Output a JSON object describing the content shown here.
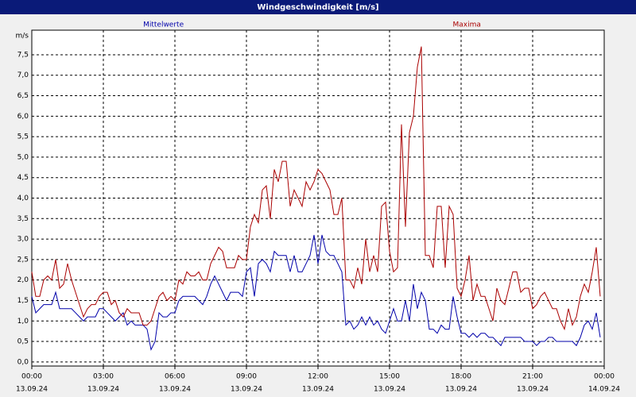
{
  "chart_data": {
    "type": "line",
    "title": "Windgeschwindigkeit [m/s]",
    "y_label": "m/s",
    "x": [
      0,
      10,
      20,
      30,
      40,
      50,
      60,
      70,
      80,
      90,
      100,
      110,
      120,
      130,
      140,
      150,
      160,
      170,
      180,
      190,
      200,
      210,
      220,
      230,
      240,
      250,
      260,
      270,
      280,
      290,
      300,
      310,
      320,
      330,
      340,
      350,
      360,
      370,
      380,
      390,
      400,
      410,
      420,
      430,
      440,
      450,
      460,
      470,
      480,
      490,
      500,
      510,
      520,
      530,
      540,
      550,
      560,
      570,
      580,
      590,
      600,
      610,
      620,
      630,
      640,
      650,
      660,
      670,
      680,
      690,
      700,
      710,
      720,
      730,
      740,
      750,
      760,
      770,
      780,
      790,
      800,
      810,
      820,
      830,
      840,
      850,
      860,
      870,
      880,
      890,
      900,
      910,
      920,
      930,
      940,
      950,
      960,
      970,
      980,
      990,
      1000,
      1010,
      1020,
      1030,
      1040,
      1050,
      1060,
      1070,
      1080,
      1090,
      1100,
      1110,
      1120,
      1130,
      1140,
      1150,
      1160,
      1170,
      1180,
      1190,
      1200,
      1210,
      1220,
      1230,
      1240,
      1250,
      1260,
      1270,
      1280,
      1290,
      1300,
      1310,
      1320,
      1330,
      1340,
      1350,
      1360,
      1370,
      1380,
      1390,
      1400,
      1410,
      1420,
      1430
    ],
    "xlim": [
      0,
      1440
    ],
    "xticks": [
      {
        "value": 0,
        "label": "00:00"
      },
      {
        "value": 180,
        "label": "03:00"
      },
      {
        "value": 360,
        "label": "06:00"
      },
      {
        "value": 540,
        "label": "09:00"
      },
      {
        "value": 720,
        "label": "12:00"
      },
      {
        "value": 900,
        "label": "15:00"
      },
      {
        "value": 1080,
        "label": "18:00"
      },
      {
        "value": 1260,
        "label": "21:00"
      },
      {
        "value": 1440,
        "label": "00:00"
      }
    ],
    "xtick_dates": [
      "13.09.24",
      "13.09.24",
      "13.09.24",
      "13.09.24",
      "13.09.24",
      "13.09.24",
      "13.09.24",
      "13.09.24",
      "14.09.24"
    ],
    "ylim": [
      -0.1,
      8.1
    ],
    "yticks": [
      {
        "value": 0,
        "label": "0,0"
      },
      {
        "value": 0.5,
        "label": "0,5"
      },
      {
        "value": 1,
        "label": "1,0"
      },
      {
        "value": 1.5,
        "label": "1,5"
      },
      {
        "value": 2,
        "label": "2,0"
      },
      {
        "value": 2.5,
        "label": "2,5"
      },
      {
        "value": 3,
        "label": "3,0"
      },
      {
        "value": 3.5,
        "label": "3,5"
      },
      {
        "value": 4,
        "label": "4,0"
      },
      {
        "value": 4.5,
        "label": "4,5"
      },
      {
        "value": 5,
        "label": "5,0"
      },
      {
        "value": 5.5,
        "label": "5,5"
      },
      {
        "value": 6,
        "label": "6,0"
      },
      {
        "value": 6.5,
        "label": "6,5"
      },
      {
        "value": 7,
        "label": "7,0"
      },
      {
        "value": 7.5,
        "label": "7,5"
      }
    ],
    "grid": true,
    "series": [
      {
        "name": "Mittelwerte",
        "color": "#0000aa",
        "values": [
          1.6,
          1.2,
          1.3,
          1.4,
          1.4,
          1.4,
          1.7,
          1.3,
          1.3,
          1.3,
          1.3,
          1.2,
          1.1,
          1.0,
          1.1,
          1.1,
          1.1,
          1.3,
          1.3,
          1.2,
          1.1,
          1.0,
          1.1,
          1.2,
          0.9,
          1.0,
          0.9,
          0.9,
          0.9,
          0.8,
          0.3,
          0.5,
          1.2,
          1.1,
          1.1,
          1.2,
          1.2,
          1.5,
          1.6,
          1.6,
          1.6,
          1.6,
          1.5,
          1.4,
          1.6,
          1.9,
          2.1,
          1.9,
          1.7,
          1.5,
          1.7,
          1.7,
          1.7,
          1.6,
          2.2,
          2.3,
          1.6,
          2.4,
          2.5,
          2.4,
          2.2,
          2.7,
          2.6,
          2.6,
          2.6,
          2.2,
          2.6,
          2.2,
          2.2,
          2.4,
          2.6,
          3.1,
          2.4,
          3.1,
          2.7,
          2.6,
          2.6,
          2.4,
          2.2,
          0.9,
          1.0,
          0.8,
          0.9,
          1.1,
          0.9,
          1.1,
          0.9,
          1.0,
          0.8,
          0.7,
          1.0,
          1.3,
          1.0,
          1.0,
          1.5,
          1.0,
          1.9,
          1.3,
          1.7,
          1.5,
          0.8,
          0.8,
          0.7,
          0.9,
          0.8,
          0.8,
          1.6,
          1.1,
          0.7,
          0.7,
          0.6,
          0.7,
          0.6,
          0.7,
          0.7,
          0.6,
          0.6,
          0.5,
          0.4,
          0.6,
          0.6,
          0.6,
          0.6,
          0.6,
          0.5,
          0.5,
          0.5,
          0.4,
          0.5,
          0.5,
          0.6,
          0.6,
          0.5,
          0.5,
          0.5,
          0.5,
          0.5,
          0.4,
          0.6,
          0.9,
          1.0,
          0.8,
          1.2,
          0.6
        ]
      },
      {
        "name": "Maxima",
        "color": "#aa0000",
        "values": [
          2.2,
          1.6,
          1.6,
          2.0,
          2.1,
          2.0,
          2.5,
          1.8,
          1.9,
          2.4,
          2.0,
          1.7,
          1.4,
          1.1,
          1.3,
          1.4,
          1.4,
          1.6,
          1.7,
          1.7,
          1.4,
          1.5,
          1.2,
          1.1,
          1.3,
          1.2,
          1.2,
          1.2,
          0.9,
          0.9,
          1.0,
          1.3,
          1.6,
          1.7,
          1.5,
          1.6,
          1.5,
          2.0,
          1.9,
          2.2,
          2.1,
          2.1,
          2.2,
          2.0,
          2.0,
          2.4,
          2.6,
          2.8,
          2.7,
          2.3,
          2.3,
          2.3,
          2.6,
          2.5,
          2.5,
          3.3,
          3.6,
          3.4,
          4.2,
          4.3,
          3.5,
          4.7,
          4.4,
          4.9,
          4.9,
          3.8,
          4.2,
          4.0,
          3.8,
          4.4,
          4.2,
          4.4,
          4.7,
          4.6,
          4.4,
          4.2,
          3.6,
          3.6,
          4.0,
          2.0,
          2.0,
          1.8,
          2.3,
          1.9,
          3.0,
          2.2,
          2.6,
          2.2,
          3.8,
          3.9,
          2.7,
          2.2,
          2.3,
          5.8,
          3.3,
          5.6,
          6.0,
          7.2,
          7.7,
          2.6,
          2.6,
          2.3,
          3.8,
          3.8,
          2.3,
          3.8,
          3.6,
          1.8,
          1.6,
          2.0,
          2.6,
          1.5,
          1.9,
          1.6,
          1.6,
          1.3,
          1.0,
          1.8,
          1.5,
          1.4,
          1.8,
          2.2,
          2.2,
          1.7,
          1.8,
          1.8,
          1.3,
          1.4,
          1.6,
          1.7,
          1.5,
          1.3,
          1.3,
          1.0,
          0.8,
          1.3,
          0.9,
          1.1,
          1.6,
          1.9,
          1.7,
          2.2,
          2.8,
          1.6
        ]
      }
    ]
  }
}
